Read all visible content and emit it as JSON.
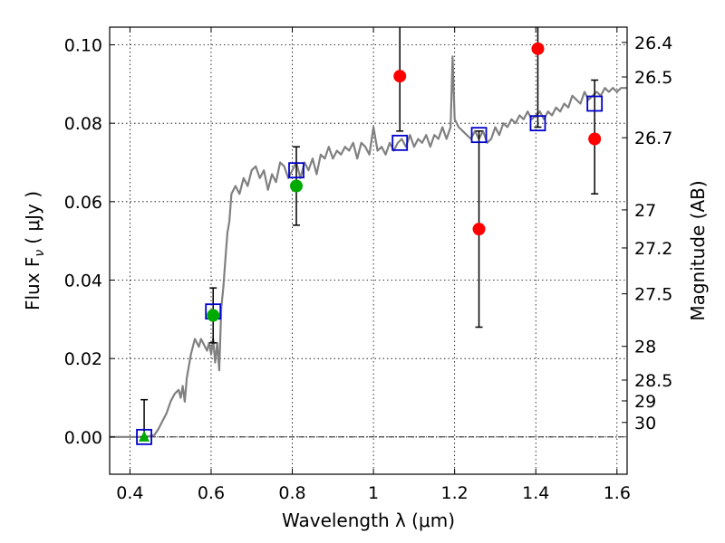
{
  "chart_data": {
    "type": "scatter",
    "title": "",
    "xlabel": "Wavelength  λ (μm)",
    "ylabel": "Flux  F",
    "ylabel_subscript": "ν",
    "ylabel_unit": "( μJy )",
    "y2label": "Magnitude (AB)",
    "xlim": [
      0.35,
      1.625
    ],
    "ylim": [
      -0.0095,
      0.1045
    ],
    "grid": true,
    "x_ticks": [
      0.4,
      0.6,
      0.8,
      1.0,
      1.2,
      1.4,
      1.6
    ],
    "x_tick_labels": [
      "0.4",
      "0.6",
      "0.8",
      "1",
      "1.2",
      "1.4",
      "1.6"
    ],
    "y_ticks": [
      0.0,
      0.02,
      0.04,
      0.06,
      0.08,
      0.1
    ],
    "y_tick_labels": [
      "0.00",
      "0.02",
      "0.04",
      "0.06",
      "0.08",
      "0.10"
    ],
    "y2_ticks": [
      {
        "label": "26.4",
        "flux": 0.1006
      },
      {
        "label": "26.5",
        "flux": 0.0918
      },
      {
        "label": "26.7",
        "flux": 0.0763
      },
      {
        "label": "27",
        "flux": 0.0579
      },
      {
        "label": "27.2",
        "flux": 0.0482
      },
      {
        "label": "27.5",
        "flux": 0.0365
      },
      {
        "label": "28",
        "flux": 0.0231
      },
      {
        "label": "28.5",
        "flux": 0.0145
      },
      {
        "label": "29",
        "flux": 0.0092
      },
      {
        "label": "30",
        "flux": 0.0037
      }
    ],
    "series": [
      {
        "kind": "line",
        "color": "#808080",
        "points": [
          [
            0.35,
            0.0
          ],
          [
            0.44,
            0.0
          ],
          [
            0.46,
            0.0005
          ],
          [
            0.47,
            0.002
          ],
          [
            0.49,
            0.006
          ],
          [
            0.5,
            0.009
          ],
          [
            0.51,
            0.011
          ],
          [
            0.52,
            0.012
          ],
          [
            0.525,
            0.01
          ],
          [
            0.53,
            0.013
          ],
          [
            0.535,
            0.009
          ],
          [
            0.54,
            0.015
          ],
          [
            0.55,
            0.021
          ],
          [
            0.56,
            0.025
          ],
          [
            0.57,
            0.023
          ],
          [
            0.575,
            0.025
          ],
          [
            0.58,
            0.024
          ],
          [
            0.59,
            0.022
          ],
          [
            0.595,
            0.024
          ],
          [
            0.6,
            0.021
          ],
          [
            0.605,
            0.025
          ],
          [
            0.61,
            0.019
          ],
          [
            0.615,
            0.024
          ],
          [
            0.62,
            0.017
          ],
          [
            0.625,
            0.033
          ],
          [
            0.63,
            0.038
          ],
          [
            0.635,
            0.045
          ],
          [
            0.64,
            0.052
          ],
          [
            0.645,
            0.055
          ],
          [
            0.65,
            0.062
          ],
          [
            0.66,
            0.064
          ],
          [
            0.67,
            0.062
          ],
          [
            0.68,
            0.066
          ],
          [
            0.69,
            0.064
          ],
          [
            0.7,
            0.068
          ],
          [
            0.71,
            0.069
          ],
          [
            0.72,
            0.066
          ],
          [
            0.73,
            0.068
          ],
          [
            0.74,
            0.063
          ],
          [
            0.75,
            0.067
          ],
          [
            0.76,
            0.065
          ],
          [
            0.77,
            0.07
          ],
          [
            0.78,
            0.069
          ],
          [
            0.79,
            0.066
          ],
          [
            0.8,
            0.068
          ],
          [
            0.81,
            0.07
          ],
          [
            0.82,
            0.066
          ],
          [
            0.83,
            0.07
          ],
          [
            0.84,
            0.068
          ],
          [
            0.85,
            0.071
          ],
          [
            0.86,
            0.067
          ],
          [
            0.87,
            0.072
          ],
          [
            0.88,
            0.071
          ],
          [
            0.89,
            0.074
          ],
          [
            0.9,
            0.071
          ],
          [
            0.91,
            0.073
          ],
          [
            0.92,
            0.072
          ],
          [
            0.93,
            0.074
          ],
          [
            0.94,
            0.073
          ],
          [
            0.95,
            0.075
          ],
          [
            0.96,
            0.071
          ],
          [
            0.97,
            0.075
          ],
          [
            0.98,
            0.074
          ],
          [
            0.99,
            0.072
          ],
          [
            1.0,
            0.079
          ],
          [
            1.01,
            0.073
          ],
          [
            1.02,
            0.074
          ],
          [
            1.03,
            0.072
          ],
          [
            1.04,
            0.075
          ],
          [
            1.05,
            0.073
          ],
          [
            1.06,
            0.075
          ],
          [
            1.07,
            0.076
          ],
          [
            1.08,
            0.074
          ],
          [
            1.09,
            0.077
          ],
          [
            1.1,
            0.074
          ],
          [
            1.11,
            0.076
          ],
          [
            1.12,
            0.075
          ],
          [
            1.13,
            0.077
          ],
          [
            1.14,
            0.074
          ],
          [
            1.15,
            0.077
          ],
          [
            1.16,
            0.076
          ],
          [
            1.17,
            0.079
          ],
          [
            1.18,
            0.076
          ],
          [
            1.19,
            0.079
          ],
          [
            1.195,
            0.097
          ],
          [
            1.2,
            0.081
          ],
          [
            1.21,
            0.079
          ],
          [
            1.22,
            0.078
          ],
          [
            1.23,
            0.077
          ],
          [
            1.24,
            0.076
          ],
          [
            1.25,
            0.078
          ],
          [
            1.26,
            0.076
          ],
          [
            1.27,
            0.078
          ],
          [
            1.28,
            0.075
          ],
          [
            1.29,
            0.076
          ],
          [
            1.3,
            0.079
          ],
          [
            1.31,
            0.077
          ],
          [
            1.32,
            0.08
          ],
          [
            1.33,
            0.079
          ],
          [
            1.34,
            0.081
          ],
          [
            1.35,
            0.08
          ],
          [
            1.36,
            0.082
          ],
          [
            1.37,
            0.081
          ],
          [
            1.38,
            0.083
          ],
          [
            1.39,
            0.081
          ],
          [
            1.4,
            0.082
          ],
          [
            1.41,
            0.083
          ],
          [
            1.42,
            0.081
          ],
          [
            1.43,
            0.083
          ],
          [
            1.44,
            0.082
          ],
          [
            1.45,
            0.084
          ],
          [
            1.46,
            0.083
          ],
          [
            1.47,
            0.085
          ],
          [
            1.48,
            0.084
          ],
          [
            1.49,
            0.087
          ],
          [
            1.5,
            0.086
          ],
          [
            1.51,
            0.085
          ],
          [
            1.52,
            0.088
          ],
          [
            1.53,
            0.086
          ],
          [
            1.54,
            0.087
          ],
          [
            1.55,
            0.088
          ],
          [
            1.56,
            0.087
          ],
          [
            1.57,
            0.089
          ],
          [
            1.58,
            0.088
          ],
          [
            1.59,
            0.089
          ],
          [
            1.6,
            0.088
          ],
          [
            1.61,
            0.089
          ],
          [
            1.625,
            0.089
          ]
        ]
      },
      {
        "kind": "open-square",
        "color": "#0000cc",
        "points": [
          [
            0.435,
            0.0
          ],
          [
            0.605,
            0.032
          ],
          [
            0.81,
            0.068
          ],
          [
            1.065,
            0.075
          ],
          [
            1.26,
            0.077
          ],
          [
            1.405,
            0.08
          ],
          [
            1.545,
            0.085
          ]
        ]
      },
      {
        "kind": "filled-circle",
        "color": "#00aa00",
        "points": [
          [
            0.605,
            0.031
          ],
          [
            0.81,
            0.064
          ]
        ]
      },
      {
        "kind": "filled-triangle",
        "color": "#00aa00",
        "points": [
          [
            0.435,
            0.0
          ]
        ]
      },
      {
        "kind": "filled-circle",
        "color": "#ff0000",
        "points": [
          [
            1.065,
            0.092
          ],
          [
            1.26,
            0.053
          ],
          [
            1.405,
            0.099
          ],
          [
            1.545,
            0.076
          ]
        ]
      }
    ],
    "error_bars": [
      {
        "x": 0.435,
        "low": 0.0,
        "high": 0.0095
      },
      {
        "x": 0.605,
        "low": 0.024,
        "high": 0.038
      },
      {
        "x": 0.81,
        "low": 0.054,
        "high": 0.074
      },
      {
        "x": 1.065,
        "low": 0.078,
        "high": 0.1045
      },
      {
        "x": 1.26,
        "low": 0.028,
        "high": 0.078
      },
      {
        "x": 1.405,
        "low": 0.079,
        "high": 0.1045
      },
      {
        "x": 1.545,
        "low": 0.062,
        "high": 0.091
      }
    ],
    "zero_line": 0.0
  }
}
